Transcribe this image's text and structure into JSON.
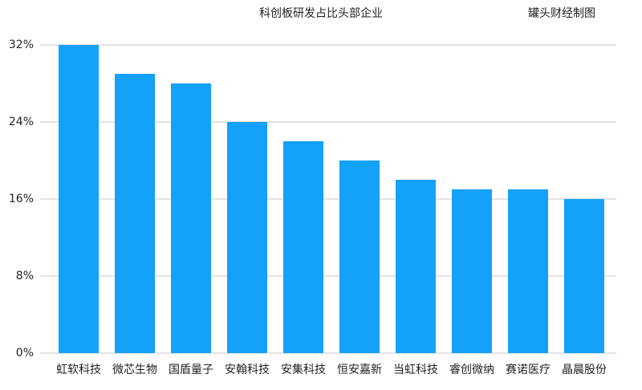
{
  "chart_data": {
    "type": "bar",
    "title": "科创板研发占比头部企业",
    "source": "罐头财经制图",
    "categories": [
      "虹软科技",
      "微芯生物",
      "国盾量子",
      "安翰科技",
      "安集科技",
      "恒安嘉新",
      "当虹科技",
      "睿创微纳",
      "赛诺医疗",
      "晶晨股份"
    ],
    "values": [
      32,
      29,
      28,
      24,
      22,
      20,
      18,
      17,
      17,
      16
    ],
    "color": "#13a2f7",
    "ylim": [
      0,
      32
    ],
    "yticks": [
      {
        "value": 0,
        "label": "0%"
      },
      {
        "value": 8,
        "label": "8%"
      },
      {
        "value": 16,
        "label": "16%"
      },
      {
        "value": 24,
        "label": "24%"
      },
      {
        "value": 32,
        "label": "32%"
      }
    ],
    "grid": true
  }
}
